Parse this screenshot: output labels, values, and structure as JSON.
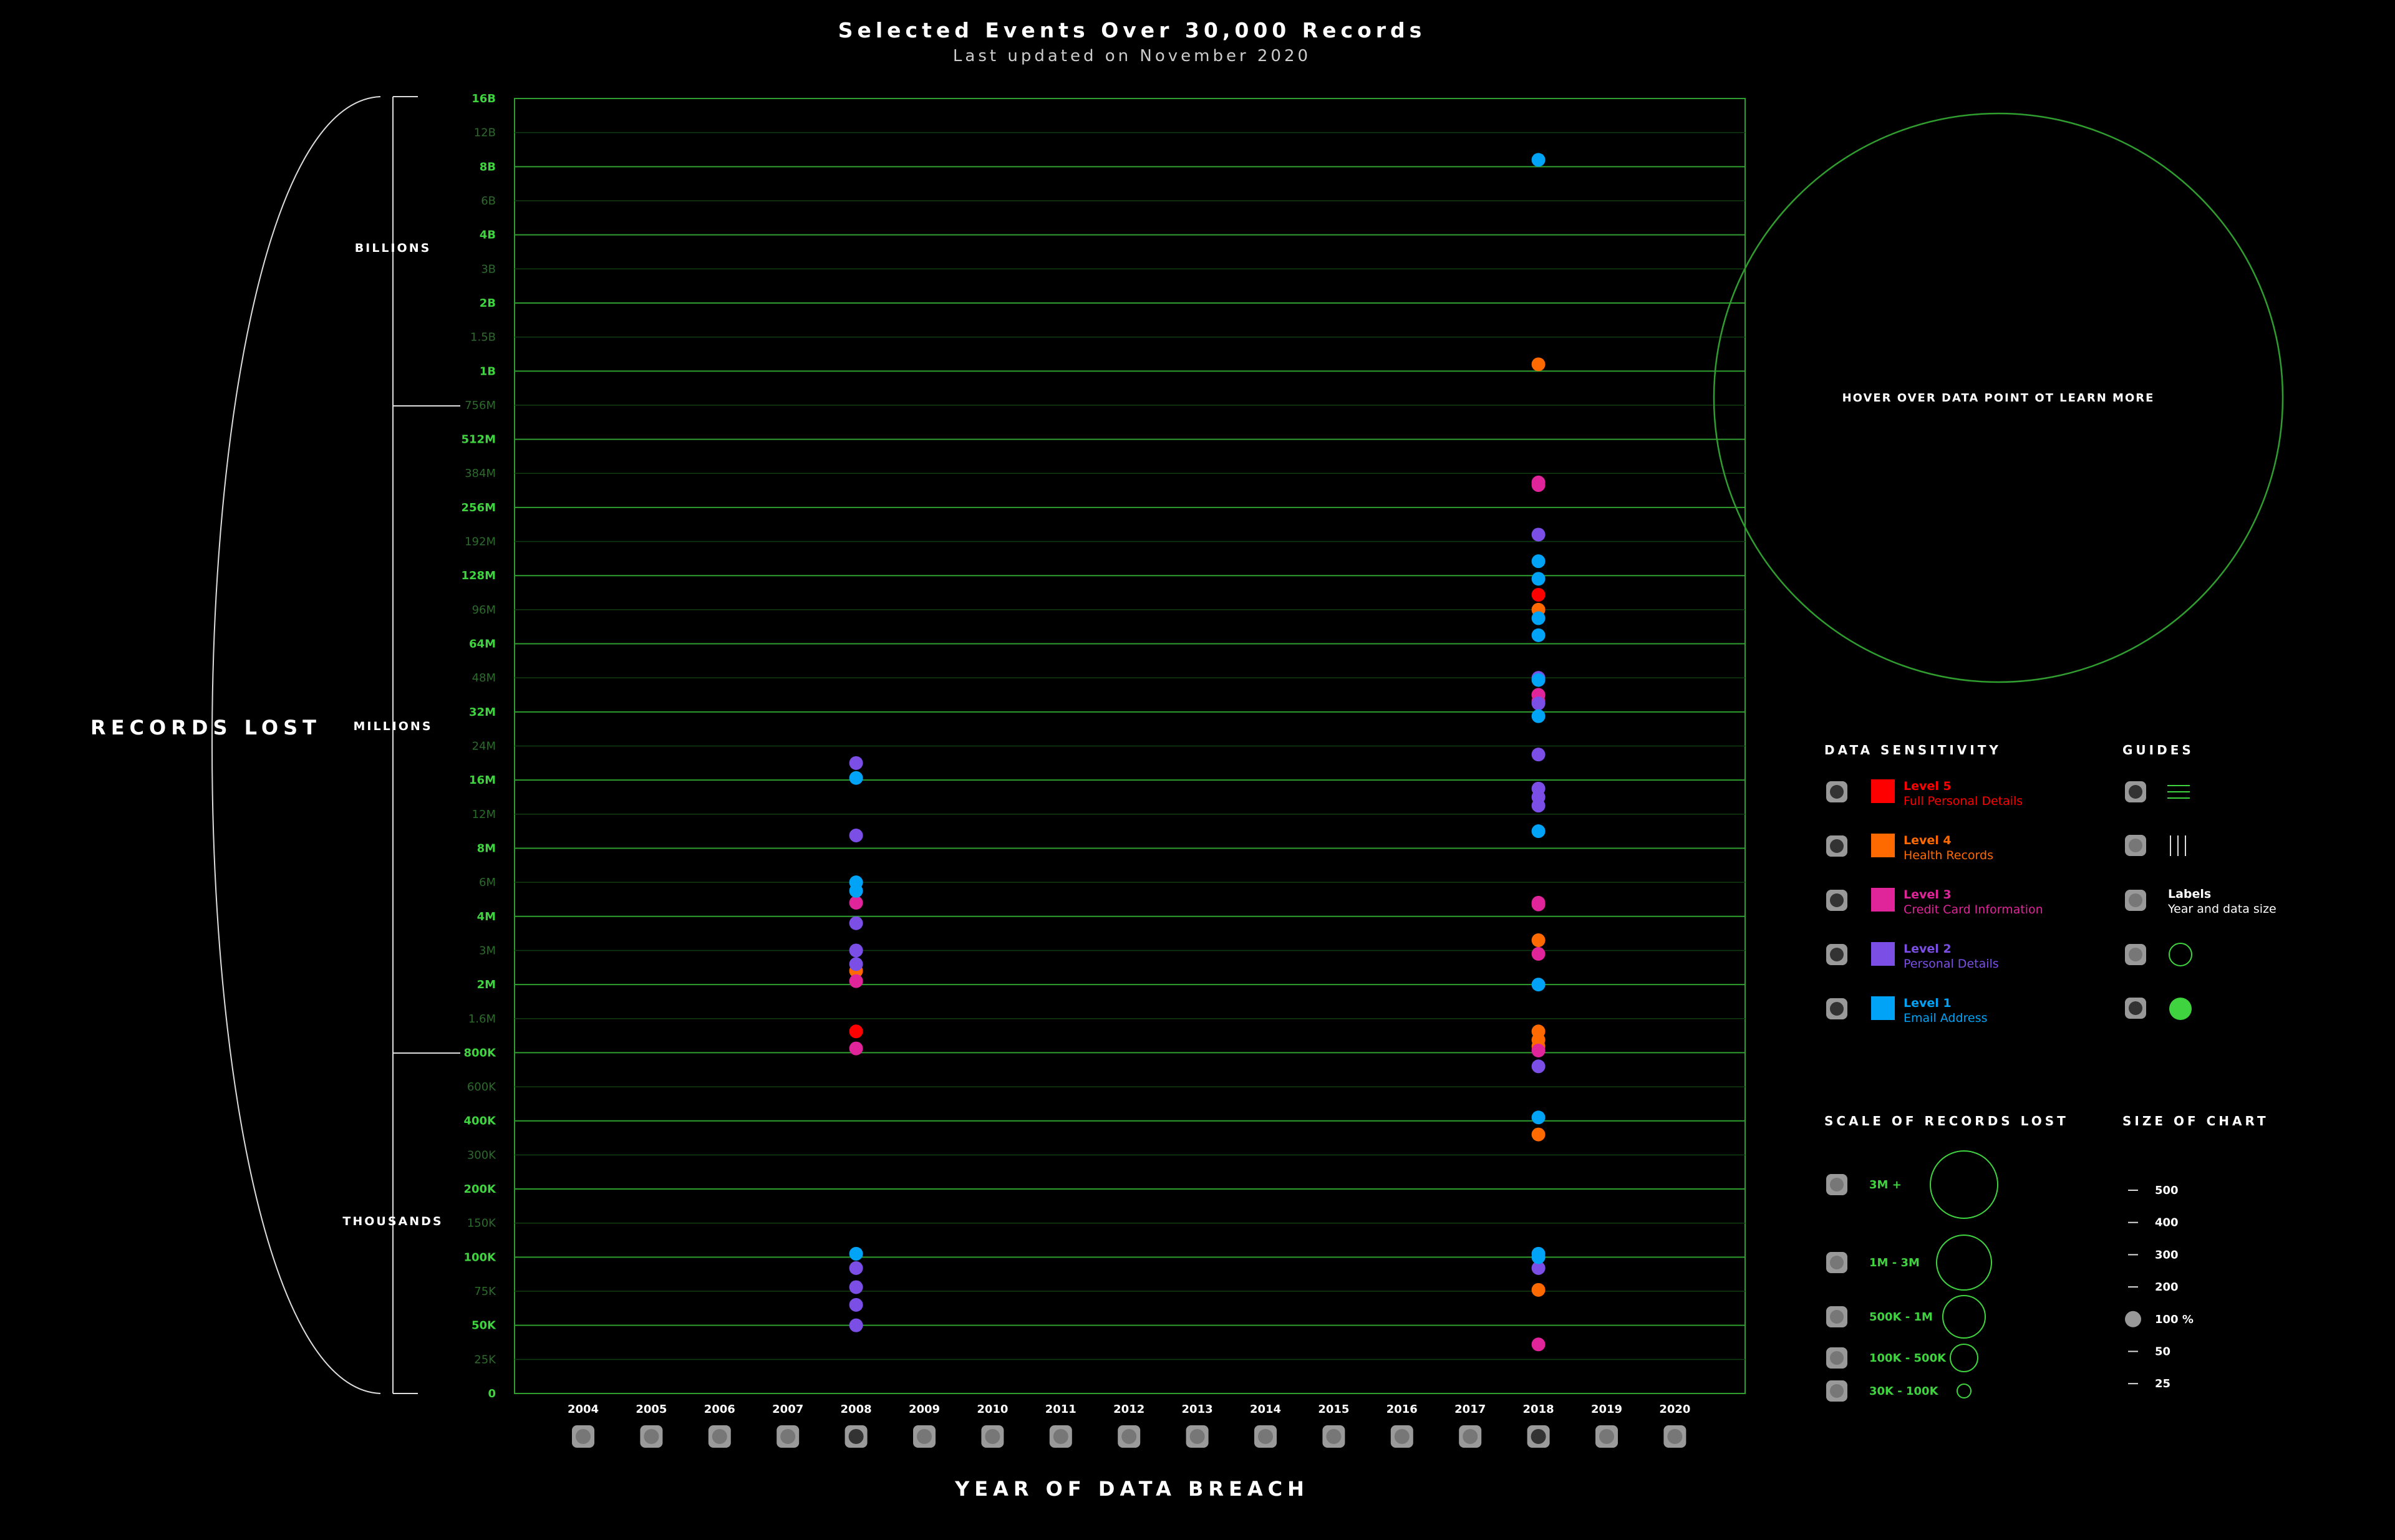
{
  "header": {
    "title": "Selected Events Over 30,000 Records",
    "subtitle": "Last updated on November 2020"
  },
  "y_axis": {
    "label": "RECORDS LOST",
    "groups": [
      "BILLIONS",
      "MILLIONS",
      "THOUSANDS"
    ],
    "ticks": [
      {
        "label": "16B",
        "major": true
      },
      {
        "label": "12B",
        "major": false
      },
      {
        "label": "8B",
        "major": true
      },
      {
        "label": "6B",
        "major": false
      },
      {
        "label": "4B",
        "major": true
      },
      {
        "label": "3B",
        "major": false
      },
      {
        "label": "2B",
        "major": true
      },
      {
        "label": "1.5B",
        "major": false
      },
      {
        "label": "1B",
        "major": true
      },
      {
        "label": "756M",
        "major": false
      },
      {
        "label": "512M",
        "major": true
      },
      {
        "label": "384M",
        "major": false
      },
      {
        "label": "256M",
        "major": true
      },
      {
        "label": "192M",
        "major": false
      },
      {
        "label": "128M",
        "major": true
      },
      {
        "label": "96M",
        "major": false
      },
      {
        "label": "64M",
        "major": true
      },
      {
        "label": "48M",
        "major": false
      },
      {
        "label": "32M",
        "major": true
      },
      {
        "label": "24M",
        "major": false
      },
      {
        "label": "16M",
        "major": true
      },
      {
        "label": "12M",
        "major": false
      },
      {
        "label": "8M",
        "major": true
      },
      {
        "label": "6M",
        "major": false
      },
      {
        "label": "4M",
        "major": true
      },
      {
        "label": "3M",
        "major": false
      },
      {
        "label": "2M",
        "major": true
      },
      {
        "label": "1.6M",
        "major": false
      },
      {
        "label": "800K",
        "major": true
      },
      {
        "label": "600K",
        "major": false
      },
      {
        "label": "400K",
        "major": true
      },
      {
        "label": "300K",
        "major": false
      },
      {
        "label": "200K",
        "major": true
      },
      {
        "label": "150K",
        "major": false
      },
      {
        "label": "100K",
        "major": true
      },
      {
        "label": "75K",
        "major": false
      },
      {
        "label": "50K",
        "major": true
      },
      {
        "label": "25K",
        "major": false
      },
      {
        "label": "0",
        "major": true
      }
    ]
  },
  "x_axis": {
    "label": "YEAR OF DATA BREACH",
    "years": [
      "2004",
      "2005",
      "2006",
      "2007",
      "2008",
      "2009",
      "2010",
      "2011",
      "2012",
      "2013",
      "2014",
      "2015",
      "2016",
      "2017",
      "2018",
      "2019",
      "2020"
    ],
    "selected": [
      "2008",
      "2018"
    ]
  },
  "colors": {
    "grid": "#2f9e2f",
    "grid_label": "#3fd43f",
    "level5": "#ff0000",
    "level4": "#ff6a00",
    "level3": "#e0249a",
    "level2": "#7b4fe6",
    "level1": "#00a3f5"
  },
  "info_panel": {
    "text": "HOVER OVER DATA POINT OT LEARN MORE"
  },
  "legend": {
    "heading": "DATA SENSITIVITY",
    "items": [
      {
        "level": "Level 5",
        "desc": "Full Personal Details",
        "color": "#ff0000"
      },
      {
        "level": "Level 4",
        "desc": "Health Records",
        "color": "#ff6a00"
      },
      {
        "level": "Level 3",
        "desc": "Credit Card Information",
        "color": "#e0249a"
      },
      {
        "level": "Level 2",
        "desc": "Personal Details",
        "color": "#7b4fe6"
      },
      {
        "level": "Level 1",
        "desc": "Email Address",
        "color": "#00a3f5"
      }
    ]
  },
  "guides": {
    "heading": "GUIDES",
    "labels_title": "Labels",
    "labels_sub": "Year and data size"
  },
  "scale": {
    "heading": "SCALE OF RECORDS LOST",
    "items": [
      "3M +",
      "1M - 3M",
      "500K - 1M",
      "100K - 500K",
      "30K - 100K"
    ]
  },
  "size_of_chart": {
    "heading": "SIZE OF CHART",
    "items": [
      "500",
      "400",
      "300",
      "200",
      "100 %",
      "50",
      "25"
    ],
    "selected": "100 %"
  },
  "chart_data": {
    "type": "scatter",
    "title": "Selected Events Over 30,000 Records",
    "subtitle": "Last updated on November 2020",
    "xlabel": "YEAR OF DATA BREACH",
    "ylabel": "RECORDS LOST",
    "y_scale": "piecewise-log",
    "ylim": [
      0,
      16000000000
    ],
    "grid": true,
    "series": [
      {
        "name": "Level 5",
        "points": [
          {
            "year": "2008",
            "records": 1300000
          },
          {
            "year": "2018",
            "records": 110000000
          }
        ]
      },
      {
        "name": "Level 4",
        "points": [
          {
            "year": "2008",
            "records": 2400000
          },
          {
            "year": "2018",
            "records": 1100000000
          },
          {
            "year": "2018",
            "records": 96000000
          },
          {
            "year": "2018",
            "records": 40000000
          },
          {
            "year": "2018",
            "records": 3300000
          },
          {
            "year": "2018",
            "records": 1300000
          },
          {
            "year": "2018",
            "records": 1100000
          },
          {
            "year": "2018",
            "records": 950000
          },
          {
            "year": "2018",
            "records": 360000
          },
          {
            "year": "2018",
            "records": 76000
          }
        ]
      },
      {
        "name": "Level 3",
        "points": [
          {
            "year": "2008",
            "records": 4800000
          },
          {
            "year": "2008",
            "records": 2100000
          },
          {
            "year": "2008",
            "records": 900000
          },
          {
            "year": "2018",
            "records": 350000000
          },
          {
            "year": "2018",
            "records": 340000000
          },
          {
            "year": "2018",
            "records": 40000000
          },
          {
            "year": "2018",
            "records": 37000000
          },
          {
            "year": "2018",
            "records": 4800000
          },
          {
            "year": "2018",
            "records": 4700000
          },
          {
            "year": "2018",
            "records": 2900000
          },
          {
            "year": "2018",
            "records": 850000
          },
          {
            "year": "2018",
            "records": 36000
          }
        ]
      },
      {
        "name": "Level 2",
        "points": [
          {
            "year": "2008",
            "records": 20000000
          },
          {
            "year": "2008",
            "records": 9500000
          },
          {
            "year": "2008",
            "records": 3800000
          },
          {
            "year": "2008",
            "records": 3000000
          },
          {
            "year": "2008",
            "records": 2600000
          },
          {
            "year": "2008",
            "records": 92000
          },
          {
            "year": "2008",
            "records": 78000
          },
          {
            "year": "2008",
            "records": 65000
          },
          {
            "year": "2008",
            "records": 50000
          },
          {
            "year": "2018",
            "records": 205000000
          },
          {
            "year": "2018",
            "records": 48000000
          },
          {
            "year": "2018",
            "records": 36000000
          },
          {
            "year": "2018",
            "records": 22000000
          },
          {
            "year": "2018",
            "records": 15000000
          },
          {
            "year": "2018",
            "records": 14000000
          },
          {
            "year": "2018",
            "records": 13000000
          },
          {
            "year": "2018",
            "records": 720000
          },
          {
            "year": "2018",
            "records": 92000
          }
        ]
      },
      {
        "name": "Level 1",
        "points": [
          {
            "year": "2008",
            "records": 16500000
          },
          {
            "year": "2008",
            "records": 6000000
          },
          {
            "year": "2008",
            "records": 5500000
          },
          {
            "year": "2008",
            "records": 105000
          },
          {
            "year": "2018",
            "records": 8800000000
          },
          {
            "year": "2018",
            "records": 155000000
          },
          {
            "year": "2018",
            "records": 125000000
          },
          {
            "year": "2018",
            "records": 88000000
          },
          {
            "year": "2018",
            "records": 72000000
          },
          {
            "year": "2018",
            "records": 47000000
          },
          {
            "year": "2018",
            "records": 31000000
          },
          {
            "year": "2018",
            "records": 10000000
          },
          {
            "year": "2018",
            "records": 2000000
          },
          {
            "year": "2018",
            "records": 420000
          },
          {
            "year": "2018",
            "records": 105000
          },
          {
            "year": "2018",
            "records": 100000
          }
        ]
      }
    ]
  }
}
